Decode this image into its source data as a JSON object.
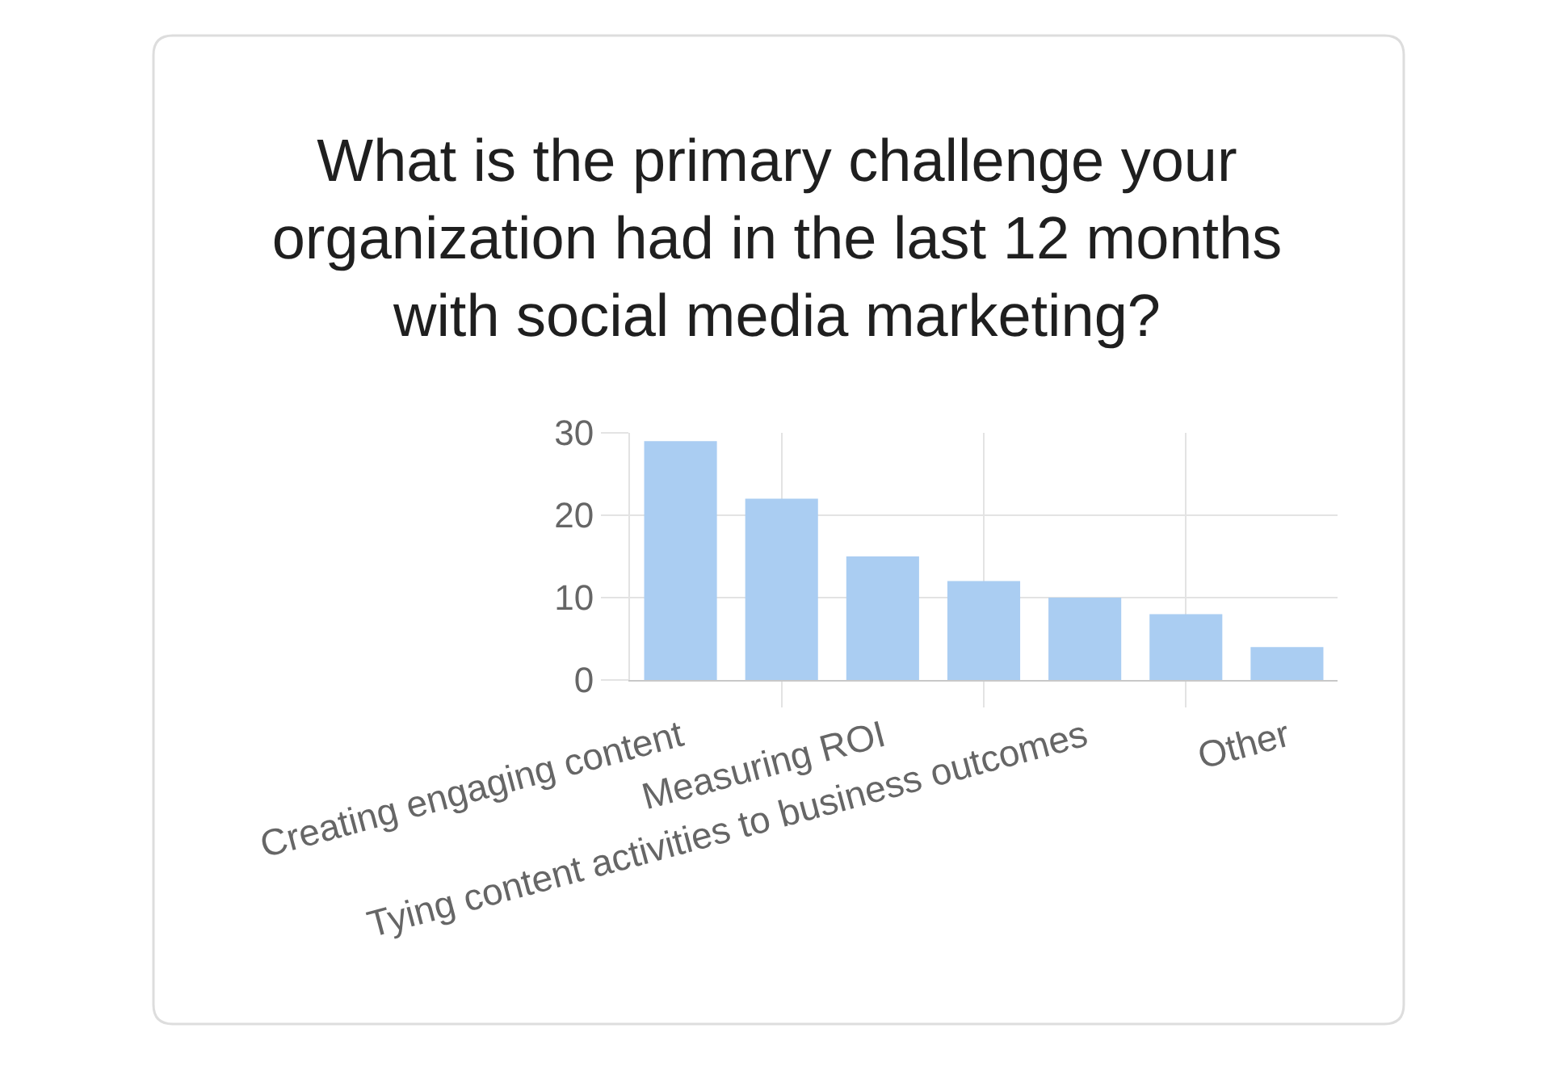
{
  "chart_data": {
    "type": "bar",
    "title": "What is the primary challenge your organization had in the last 12 months with social media marketing?",
    "categories": [
      "Creating engaging content",
      null,
      "Measuring ROI",
      null,
      "Tying content activities to business outcomes",
      null,
      "Other"
    ],
    "values": [
      29,
      22,
      15,
      12,
      10,
      8,
      4
    ],
    "color": "#aacdf2",
    "ylim": [
      0,
      30
    ],
    "yticks": [
      0,
      10,
      20,
      30
    ],
    "grid": true
  }
}
